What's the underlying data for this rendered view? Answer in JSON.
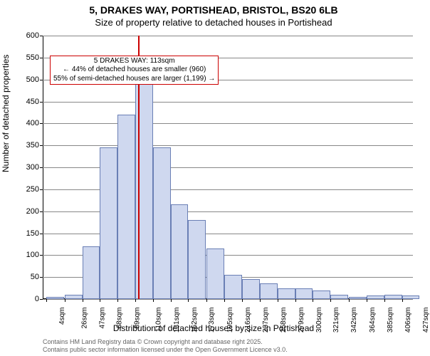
{
  "title_address": "5, DRAKES WAY, PORTISHEAD, BRISTOL, BS20 6LB",
  "subtitle": "Size of property relative to detached houses in Portishead",
  "chart": {
    "type": "histogram",
    "ylabel": "Number of detached properties",
    "xlabel": "Distribution of detached houses by size in Portishead",
    "xlim": [
      0,
      440
    ],
    "ylim": [
      0,
      600
    ],
    "ytick_step": 50,
    "xticks": [
      4,
      26,
      47,
      68,
      89,
      110,
      131,
      152,
      173,
      195,
      216,
      237,
      258,
      279,
      300,
      321,
      342,
      364,
      385,
      406,
      427
    ],
    "xtick_suffix": "sqm",
    "bin_width": 21,
    "bar_fill": "#cfd8ef",
    "bar_border": "#6a7fb5",
    "grid_color": "#888888",
    "background_color": "#ffffff",
    "title_fontsize": 14,
    "label_fontsize": 12,
    "tick_fontsize": 10,
    "values": [
      5,
      10,
      120,
      345,
      420,
      495,
      345,
      215,
      180,
      115,
      55,
      45,
      35,
      25,
      25,
      20,
      10,
      5,
      8,
      10,
      8
    ],
    "reference_line": {
      "x": 113,
      "color": "#cc0000",
      "width": 2
    },
    "annotation": {
      "lines": [
        "5 DRAKES WAY: 113sqm",
        "← 44% of detached houses are smaller (960)",
        "55% of semi-detached houses are larger (1,199) →"
      ],
      "border_color": "#cc0000",
      "x_center": 140,
      "y_top": 555
    }
  },
  "attribution": {
    "line1": "Contains HM Land Registry data © Crown copyright and database right 2025.",
    "line2": "Contains public sector information licensed under the Open Government Licence v3.0."
  }
}
